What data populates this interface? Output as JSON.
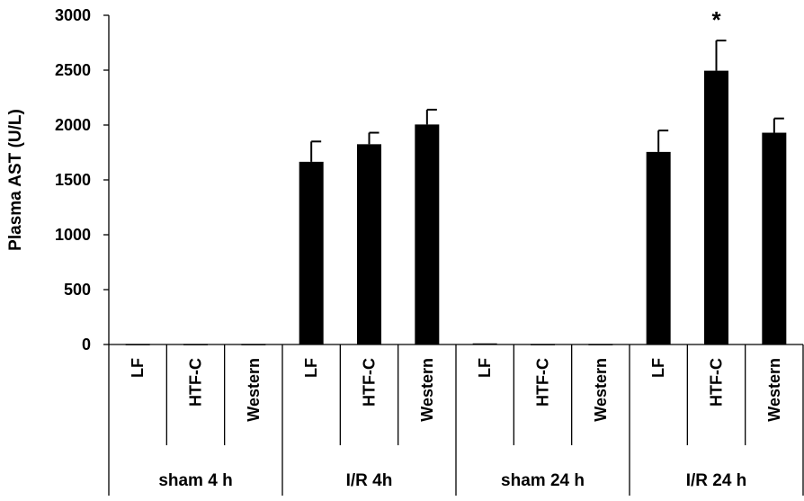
{
  "chart_data": {
    "type": "bar",
    "title": "",
    "ylabel": "Plasma AST (U/L)",
    "xlabel": "",
    "ylim": [
      0,
      3000
    ],
    "yticks": [
      0,
      500,
      1000,
      1500,
      2000,
      2500,
      3000
    ],
    "groups": [
      "sham 4 h",
      "I/R 4h",
      "sham 24 h",
      "I/R 24 h"
    ],
    "categories": [
      "LF",
      "HTF-C",
      "Western",
      "LF",
      "HTF-C",
      "Western",
      "LF",
      "HTF-C",
      "Western",
      "LF",
      "HTF-C",
      "Western"
    ],
    "values": [
      5,
      5,
      5,
      1665,
      1825,
      2005,
      10,
      5,
      5,
      1755,
      2495,
      1930
    ],
    "errors": [
      0,
      0,
      0,
      185,
      105,
      135,
      0,
      0,
      0,
      195,
      275,
      130
    ],
    "annotations": [
      {
        "category_index": 10,
        "text": "*"
      }
    ],
    "grid": false,
    "legend": "none",
    "bar_color": "#000000"
  }
}
